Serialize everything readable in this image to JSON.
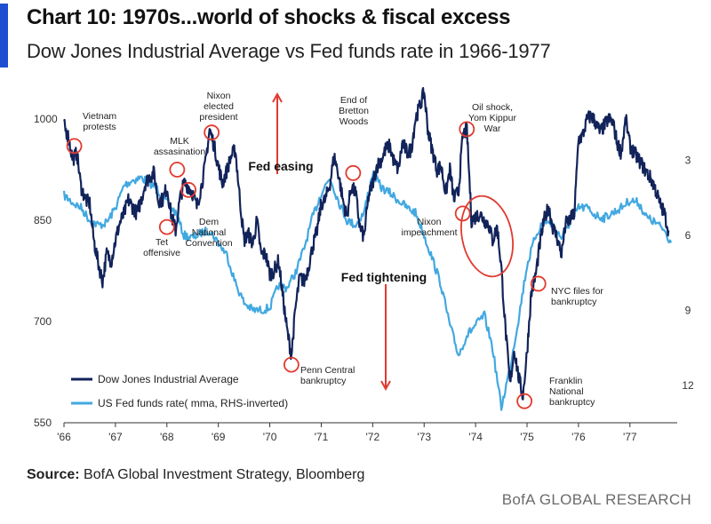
{
  "header": {
    "title": "Chart 10: 1970s...world of shocks & fiscal excess",
    "subtitle": "Dow Jones Industrial Average vs Fed funds rate in 1966-1977"
  },
  "footer": {
    "source_label": "Source:",
    "source_text": "BofA Global Investment Strategy, Bloomberg",
    "brand": "BofA GLOBAL RESEARCH"
  },
  "colors": {
    "dow": "#12235a",
    "fed": "#42a8e0",
    "circle": "#e03a2f",
    "arrow": "#e03a2f",
    "accent": "#1f4fd1"
  },
  "chart_data": {
    "type": "line",
    "xlim": [
      1966,
      1977.85
    ],
    "ylim": [
      550,
      1050
    ],
    "y2lim": [
      0,
      13.5
    ],
    "y2_inverted": true,
    "x_ticks": [
      "'66",
      "'67",
      "'68",
      "'69",
      "'70",
      "'71",
      "'72",
      "'73",
      "'74",
      "'75",
      "'76",
      "'77"
    ],
    "x_tick_values": [
      1966,
      1967,
      1968,
      1969,
      1970,
      1971,
      1972,
      1973,
      1974,
      1975,
      1976,
      1977
    ],
    "y_ticks": [
      550,
      700,
      850,
      1000
    ],
    "y2_ticks": [
      3,
      6,
      9,
      12
    ],
    "series": [
      {
        "name": "Dow Jones Industrial Average",
        "axis": "left",
        "points": [
          [
            1966.0,
            990
          ],
          [
            1966.08,
            975
          ],
          [
            1966.17,
            940
          ],
          [
            1966.25,
            950
          ],
          [
            1966.33,
            900
          ],
          [
            1966.42,
            880
          ],
          [
            1966.5,
            875
          ],
          [
            1966.58,
            820
          ],
          [
            1966.67,
            785
          ],
          [
            1966.75,
            760
          ],
          [
            1966.83,
            800
          ],
          [
            1966.92,
            790
          ],
          [
            1967.0,
            820
          ],
          [
            1967.08,
            845
          ],
          [
            1967.17,
            860
          ],
          [
            1967.25,
            880
          ],
          [
            1967.33,
            870
          ],
          [
            1967.42,
            860
          ],
          [
            1967.5,
            880
          ],
          [
            1967.58,
            905
          ],
          [
            1967.67,
            915
          ],
          [
            1967.75,
            920
          ],
          [
            1967.83,
            880
          ],
          [
            1967.92,
            880
          ],
          [
            1968.0,
            900
          ],
          [
            1968.08,
            860
          ],
          [
            1968.17,
            835
          ],
          [
            1968.25,
            880
          ],
          [
            1968.33,
            905
          ],
          [
            1968.42,
            900
          ],
          [
            1968.5,
            890
          ],
          [
            1968.58,
            870
          ],
          [
            1968.67,
            900
          ],
          [
            1968.75,
            935
          ],
          [
            1968.83,
            985
          ],
          [
            1968.92,
            960
          ],
          [
            1969.0,
            930
          ],
          [
            1969.08,
            905
          ],
          [
            1969.17,
            925
          ],
          [
            1969.25,
            945
          ],
          [
            1969.33,
            955
          ],
          [
            1969.42,
            880
          ],
          [
            1969.5,
            820
          ],
          [
            1969.58,
            830
          ],
          [
            1969.67,
            815
          ],
          [
            1969.75,
            850
          ],
          [
            1969.83,
            800
          ],
          [
            1969.92,
            800
          ],
          [
            1970.0,
            770
          ],
          [
            1970.08,
            775
          ],
          [
            1970.17,
            790
          ],
          [
            1970.25,
            740
          ],
          [
            1970.33,
            690
          ],
          [
            1970.42,
            650
          ],
          [
            1970.5,
            720
          ],
          [
            1970.58,
            765
          ],
          [
            1970.67,
            760
          ],
          [
            1970.75,
            780
          ],
          [
            1970.83,
            810
          ],
          [
            1970.92,
            835
          ],
          [
            1971.0,
            875
          ],
          [
            1971.08,
            880
          ],
          [
            1971.17,
            905
          ],
          [
            1971.25,
            945
          ],
          [
            1971.33,
            920
          ],
          [
            1971.42,
            880
          ],
          [
            1971.5,
            855
          ],
          [
            1971.58,
            900
          ],
          [
            1971.67,
            890
          ],
          [
            1971.75,
            840
          ],
          [
            1971.83,
            825
          ],
          [
            1971.92,
            885
          ],
          [
            1972.0,
            905
          ],
          [
            1972.08,
            930
          ],
          [
            1972.17,
            940
          ],
          [
            1972.25,
            955
          ],
          [
            1972.33,
            960
          ],
          [
            1972.42,
            935
          ],
          [
            1972.5,
            925
          ],
          [
            1972.58,
            965
          ],
          [
            1972.67,
            950
          ],
          [
            1972.75,
            955
          ],
          [
            1972.83,
            1000
          ],
          [
            1972.92,
            1020
          ],
          [
            1973.0,
            1040
          ],
          [
            1973.08,
            980
          ],
          [
            1973.17,
            950
          ],
          [
            1973.25,
            925
          ],
          [
            1973.33,
            930
          ],
          [
            1973.42,
            890
          ],
          [
            1973.5,
            925
          ],
          [
            1973.58,
            880
          ],
          [
            1973.67,
            895
          ],
          [
            1973.75,
            975
          ],
          [
            1973.83,
            985
          ],
          [
            1973.92,
            850
          ],
          [
            1974.0,
            855
          ],
          [
            1974.08,
            860
          ],
          [
            1974.17,
            850
          ],
          [
            1974.25,
            845
          ],
          [
            1974.33,
            820
          ],
          [
            1974.42,
            840
          ],
          [
            1974.5,
            780
          ],
          [
            1974.58,
            690
          ],
          [
            1974.67,
            605
          ],
          [
            1974.75,
            660
          ],
          [
            1974.83,
            620
          ],
          [
            1974.92,
            590
          ],
          [
            1975.0,
            655
          ],
          [
            1975.08,
            740
          ],
          [
            1975.17,
            770
          ],
          [
            1975.25,
            815
          ],
          [
            1975.33,
            850
          ],
          [
            1975.42,
            870
          ],
          [
            1975.5,
            840
          ],
          [
            1975.58,
            825
          ],
          [
            1975.67,
            800
          ],
          [
            1975.75,
            845
          ],
          [
            1975.83,
            850
          ],
          [
            1975.92,
            860
          ],
          [
            1976.0,
            970
          ],
          [
            1976.08,
            975
          ],
          [
            1976.17,
            1000
          ],
          [
            1976.25,
            1005
          ],
          [
            1976.33,
            995
          ],
          [
            1976.42,
            980
          ],
          [
            1976.5,
            990
          ],
          [
            1976.58,
            1000
          ],
          [
            1976.67,
            995
          ],
          [
            1976.75,
            965
          ],
          [
            1976.83,
            950
          ],
          [
            1976.92,
            1000
          ],
          [
            1977.0,
            960
          ],
          [
            1977.08,
            950
          ],
          [
            1977.17,
            940
          ],
          [
            1977.25,
            930
          ],
          [
            1977.33,
            920
          ],
          [
            1977.42,
            910
          ],
          [
            1977.5,
            895
          ],
          [
            1977.58,
            875
          ],
          [
            1977.67,
            860
          ],
          [
            1977.75,
            835
          ]
        ]
      },
      {
        "name": "US Fed funds rate( mma, RHS-inverted)",
        "axis": "right",
        "points": [
          [
            1966.0,
            4.4
          ],
          [
            1966.17,
            4.7
          ],
          [
            1966.33,
            4.9
          ],
          [
            1966.5,
            5.4
          ],
          [
            1966.67,
            5.6
          ],
          [
            1966.83,
            5.5
          ],
          [
            1967.0,
            4.9
          ],
          [
            1967.17,
            4.0
          ],
          [
            1967.33,
            3.8
          ],
          [
            1967.5,
            3.7
          ],
          [
            1967.67,
            3.9
          ],
          [
            1967.83,
            4.2
          ],
          [
            1968.0,
            4.7
          ],
          [
            1968.17,
            5.1
          ],
          [
            1968.33,
            6.0
          ],
          [
            1968.5,
            6.1
          ],
          [
            1968.67,
            5.9
          ],
          [
            1968.83,
            5.8
          ],
          [
            1969.0,
            6.3
          ],
          [
            1969.17,
            6.8
          ],
          [
            1969.33,
            7.9
          ],
          [
            1969.5,
            8.7
          ],
          [
            1969.67,
            9.0
          ],
          [
            1969.83,
            9.0
          ],
          [
            1970.0,
            8.9
          ],
          [
            1970.17,
            8.0
          ],
          [
            1970.33,
            8.1
          ],
          [
            1970.5,
            7.5
          ],
          [
            1970.67,
            6.5
          ],
          [
            1970.83,
            5.3
          ],
          [
            1971.0,
            4.3
          ],
          [
            1971.17,
            3.7
          ],
          [
            1971.33,
            4.6
          ],
          [
            1971.5,
            5.4
          ],
          [
            1971.67,
            5.6
          ],
          [
            1971.83,
            5.1
          ],
          [
            1972.0,
            3.5
          ],
          [
            1972.17,
            4.1
          ],
          [
            1972.33,
            4.3
          ],
          [
            1972.5,
            4.6
          ],
          [
            1972.67,
            4.9
          ],
          [
            1972.83,
            5.1
          ],
          [
            1973.0,
            6.0
          ],
          [
            1973.17,
            7.0
          ],
          [
            1973.33,
            8.0
          ],
          [
            1973.5,
            9.6
          ],
          [
            1973.67,
            10.8
          ],
          [
            1973.83,
            10.0
          ],
          [
            1974.0,
            9.6
          ],
          [
            1974.17,
            9.2
          ],
          [
            1974.33,
            10.5
          ],
          [
            1974.5,
            12.9
          ],
          [
            1974.67,
            11.3
          ],
          [
            1974.83,
            9.4
          ],
          [
            1975.0,
            7.2
          ],
          [
            1975.17,
            6.0
          ],
          [
            1975.33,
            5.4
          ],
          [
            1975.5,
            5.6
          ],
          [
            1975.67,
            6.1
          ],
          [
            1975.83,
            5.5
          ],
          [
            1976.0,
            4.9
          ],
          [
            1976.17,
            4.9
          ],
          [
            1976.33,
            5.2
          ],
          [
            1976.5,
            5.3
          ],
          [
            1976.67,
            5.1
          ],
          [
            1976.83,
            4.9
          ],
          [
            1977.0,
            4.6
          ],
          [
            1977.17,
            4.7
          ],
          [
            1977.33,
            5.3
          ],
          [
            1977.5,
            5.5
          ],
          [
            1977.67,
            5.8
          ],
          [
            1977.8,
            6.3
          ]
        ]
      }
    ],
    "annotations": [
      {
        "label": "Vietnam protests",
        "x": 1966.2,
        "y": 960,
        "circle": true
      },
      {
        "label": "Tet offensive",
        "x": 1968.0,
        "y": 840,
        "circle": true
      },
      {
        "label": "MLK assasination",
        "x": 1968.2,
        "y": 925,
        "circle": true
      },
      {
        "label": "Dem National Convention",
        "x": 1968.42,
        "y": 895,
        "circle": true
      },
      {
        "label": "Nixon elected president",
        "x": 1968.87,
        "y": 980,
        "circle": true
      },
      {
        "label": "End of Bretton Woods",
        "x": 1971.62,
        "y": 920,
        "circle": true
      },
      {
        "label": "Oil shock, Yom Kippur War",
        "x": 1973.83,
        "y": 985,
        "circle": true
      },
      {
        "label": "Nixon impeachment",
        "x": 1973.75,
        "y": 860,
        "circle": true
      },
      {
        "label": "Penn Central bankruptcy",
        "x": 1970.42,
        "y": 636,
        "circle": true
      },
      {
        "label": "NYC files for bankruptcy",
        "x": 1975.22,
        "y": 756,
        "circle": true
      },
      {
        "label": "Franklin National bankruptcy",
        "x": 1974.95,
        "y": 582,
        "circle": true
      },
      {
        "label": "Fed easing",
        "arrow": "up"
      },
      {
        "label": "Fed tightening",
        "arrow": "down"
      }
    ],
    "legend_position": "bottom-left"
  }
}
